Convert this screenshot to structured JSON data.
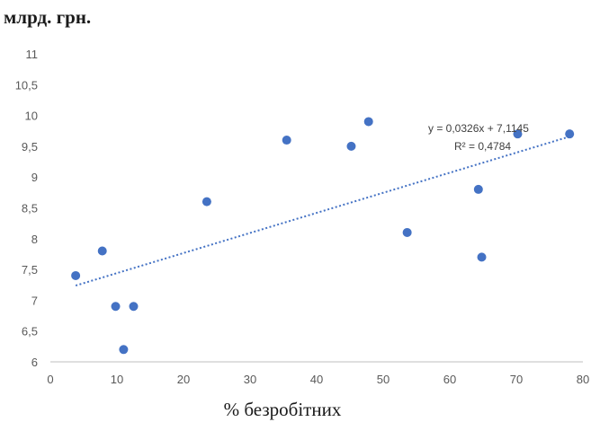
{
  "chart_data": {
    "type": "scatter",
    "title": "",
    "xlabel": "% безробітних",
    "ylabel": "млрд. грн.",
    "xlim": [
      0,
      80
    ],
    "ylim": [
      6,
      11
    ],
    "x_ticks": [
      0,
      10,
      20,
      30,
      40,
      50,
      60,
      70,
      80
    ],
    "y_ticks": [
      "6",
      "6,5",
      "7",
      "7,5",
      "8",
      "8,5",
      "9",
      "9,5",
      "10",
      "10,5",
      "11"
    ],
    "y_tick_values": [
      6,
      6.5,
      7,
      7.5,
      8,
      8.5,
      9,
      9.5,
      10,
      10.5,
      11
    ],
    "grid": false,
    "series": [
      {
        "color": "#4472c4",
        "points": [
          {
            "x": 3.8,
            "y": 7.4
          },
          {
            "x": 7.8,
            "y": 7.8
          },
          {
            "x": 9.8,
            "y": 6.9
          },
          {
            "x": 11.0,
            "y": 6.2
          },
          {
            "x": 12.5,
            "y": 6.9
          },
          {
            "x": 23.5,
            "y": 8.6
          },
          {
            "x": 35.5,
            "y": 9.6
          },
          {
            "x": 45.2,
            "y": 9.5
          },
          {
            "x": 47.8,
            "y": 9.9
          },
          {
            "x": 53.6,
            "y": 8.1
          },
          {
            "x": 64.3,
            "y": 8.8
          },
          {
            "x": 64.8,
            "y": 7.7
          },
          {
            "x": 70.2,
            "y": 9.7
          },
          {
            "x": 78.0,
            "y": 9.7
          }
        ]
      }
    ],
    "trendline": {
      "type": "linear",
      "slope": 0.0326,
      "intercept": 7.1145,
      "x_range": [
        3.8,
        78.0
      ],
      "color": "#4472c4",
      "style": "dotted",
      "equation": "y = 0,0326x + 7,1145",
      "r_squared": "R² = 0,4784"
    }
  }
}
